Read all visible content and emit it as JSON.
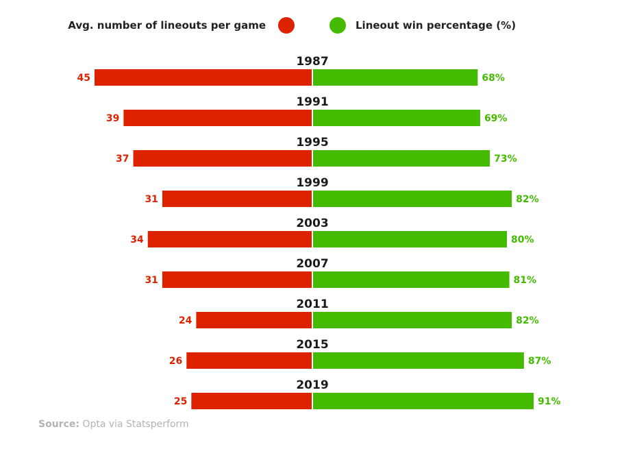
{
  "chart_data": {
    "type": "bar",
    "orientation": "horizontal-diverging",
    "categories": [
      "1987",
      "1991",
      "1995",
      "1999",
      "2003",
      "2007",
      "2011",
      "2015",
      "2019"
    ],
    "series": [
      {
        "name": "Avg. number of lineouts per game",
        "values": [
          45,
          39,
          37,
          31,
          34,
          31,
          24,
          26,
          25
        ],
        "labels": [
          "45",
          "39",
          "37",
          "31",
          "34",
          "31",
          "24",
          "26",
          "25"
        ],
        "color": "#dd2200",
        "side": "left"
      },
      {
        "name": "Lineout win percentage (%)",
        "values": [
          68,
          69,
          73,
          82,
          80,
          81,
          82,
          87,
          91
        ],
        "labels": [
          "68%",
          "69%",
          "73%",
          "82%",
          "80%",
          "81%",
          "82%",
          "87%",
          "91%"
        ],
        "color": "#44bb00",
        "side": "right"
      }
    ],
    "legend_position": "top",
    "grid": false
  },
  "source": {
    "key": "Source:",
    "text": " Opta via Statsperform"
  }
}
